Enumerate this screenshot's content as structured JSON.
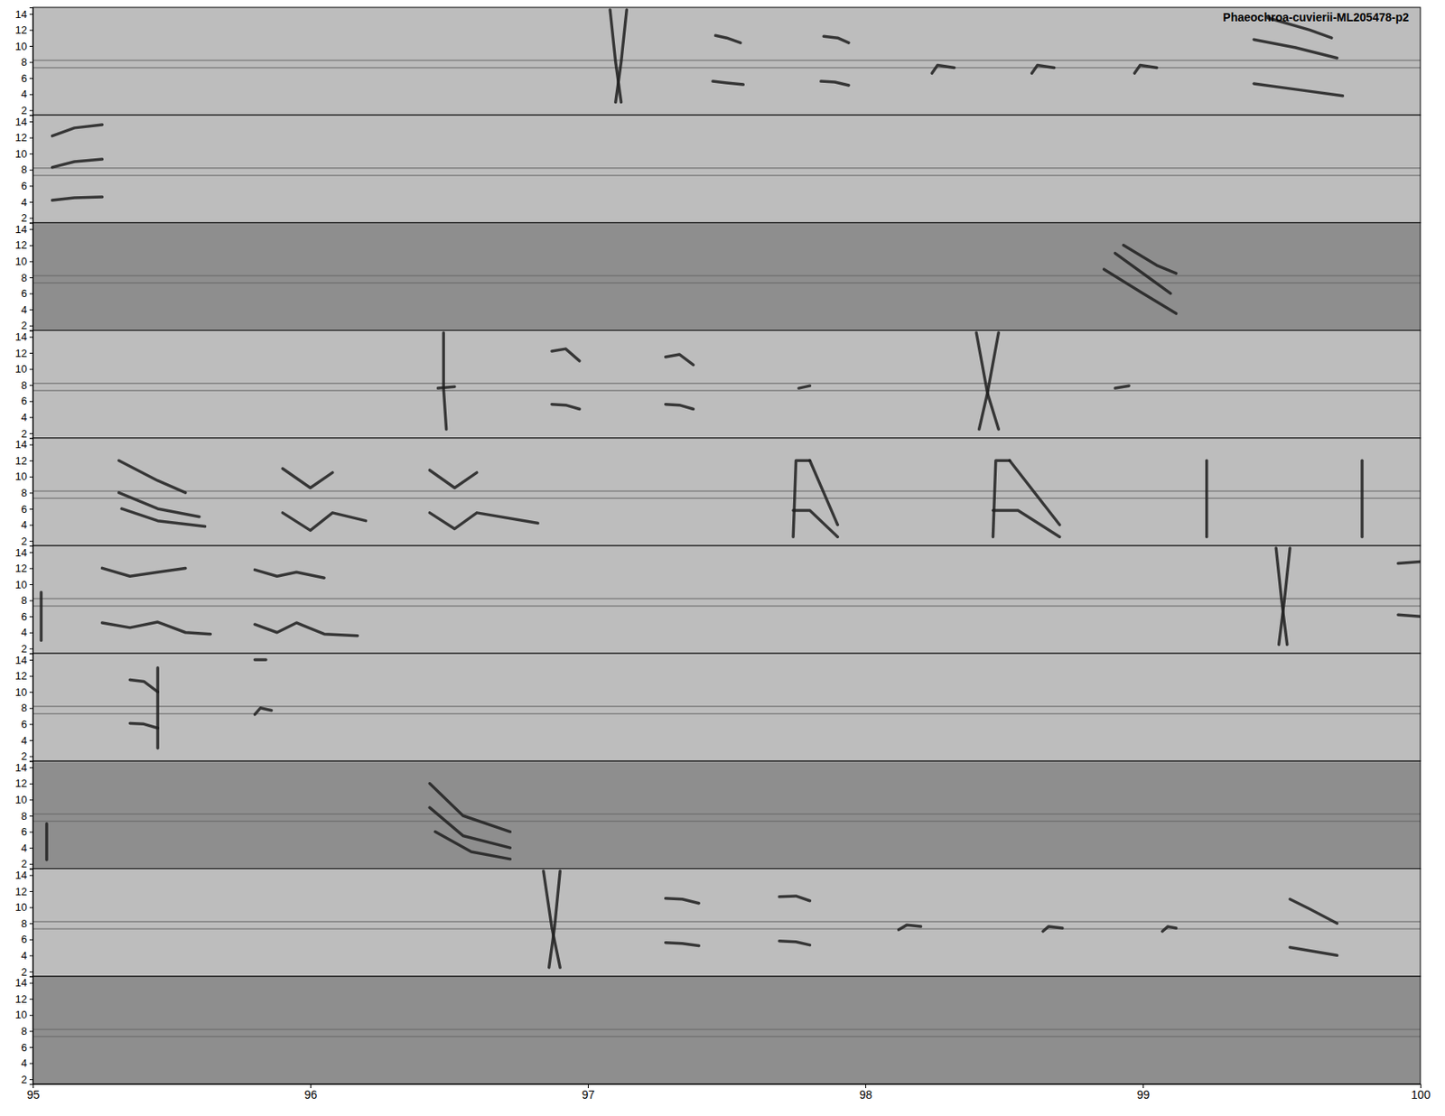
{
  "chart_data": {
    "type": "spectrogram",
    "title": "Phaeochroa-cuvierii-ML205478-p2",
    "xlim": [
      95,
      100
    ],
    "xticks": [
      95,
      96,
      97,
      98,
      99,
      100
    ],
    "ylim": [
      1.4,
      14.8
    ],
    "yticks": [
      2,
      4,
      6,
      8,
      10,
      12,
      14
    ],
    "hum_bands": [
      8.2,
      7.3
    ],
    "series": [
      {
        "color": "#bdbdbd",
        "strokes": [
          [
            [
              97.08,
              14.5
            ],
            [
              97.1,
              8
            ],
            [
              97.12,
              3
            ]
          ],
          [
            [
              97.14,
              14.5
            ],
            [
              97.12,
              8
            ],
            [
              97.1,
              3
            ]
          ],
          [
            [
              97.45,
              5.6
            ],
            [
              97.5,
              5.4
            ],
            [
              97.56,
              5.2
            ]
          ],
          [
            [
              97.46,
              11.3
            ],
            [
              97.5,
              11
            ],
            [
              97.55,
              10.4
            ]
          ],
          [
            [
              97.84,
              5.6
            ],
            [
              97.89,
              5.5
            ],
            [
              97.94,
              5.1
            ]
          ],
          [
            [
              97.85,
              11.2
            ],
            [
              97.9,
              11
            ],
            [
              97.94,
              10.4
            ]
          ],
          [
            [
              98.24,
              6.6
            ],
            [
              98.26,
              7.6
            ],
            [
              98.32,
              7.3
            ]
          ],
          [
            [
              98.6,
              6.6
            ],
            [
              98.62,
              7.6
            ],
            [
              98.68,
              7.3
            ]
          ],
          [
            [
              98.97,
              6.6
            ],
            [
              98.99,
              7.6
            ],
            [
              99.05,
              7.3
            ]
          ],
          [
            [
              99.4,
              5.3
            ],
            [
              99.55,
              4.6
            ],
            [
              99.72,
              3.8
            ]
          ],
          [
            [
              99.4,
              10.8
            ],
            [
              99.55,
              9.8
            ],
            [
              99.7,
              8.5
            ]
          ],
          [
            [
              99.45,
              13.5
            ],
            [
              99.6,
              12
            ],
            [
              99.68,
              11
            ]
          ]
        ]
      },
      {
        "color": "#bdbdbd",
        "strokes": [
          [
            [
              95.07,
              4.2
            ],
            [
              95.15,
              4.5
            ],
            [
              95.25,
              4.6
            ]
          ],
          [
            [
              95.07,
              8.3
            ],
            [
              95.15,
              9
            ],
            [
              95.25,
              9.3
            ]
          ],
          [
            [
              95.07,
              12.2
            ],
            [
              95.15,
              13.2
            ],
            [
              95.25,
              13.6
            ]
          ]
        ]
      },
      {
        "color": "#8e8e8e",
        "strokes": [
          [
            [
              98.86,
              9
            ],
            [
              99.0,
              6
            ],
            [
              99.12,
              3.5
            ]
          ],
          [
            [
              98.9,
              11
            ],
            [
              99.02,
              8
            ],
            [
              99.1,
              6
            ]
          ],
          [
            [
              98.93,
              12
            ],
            [
              99.05,
              9.5
            ],
            [
              99.12,
              8.5
            ]
          ]
        ]
      },
      {
        "color": "#bdbdbd",
        "strokes": [
          [
            [
              96.48,
              14.5
            ],
            [
              96.48,
              7.6
            ],
            [
              96.49,
              2.5
            ]
          ],
          [
            [
              96.46,
              7.6
            ],
            [
              96.52,
              7.8
            ]
          ],
          [
            [
              96.87,
              5.6
            ],
            [
              96.92,
              5.5
            ],
            [
              96.97,
              5.0
            ]
          ],
          [
            [
              96.87,
              12.2
            ],
            [
              96.92,
              12.5
            ],
            [
              96.97,
              11
            ]
          ],
          [
            [
              97.28,
              5.6
            ],
            [
              97.33,
              5.5
            ],
            [
              97.38,
              5.0
            ]
          ],
          [
            [
              97.28,
              11.5
            ],
            [
              97.33,
              11.8
            ],
            [
              97.38,
              10.5
            ]
          ],
          [
            [
              97.76,
              7.6
            ],
            [
              97.8,
              7.9
            ]
          ],
          [
            [
              98.4,
              14.5
            ],
            [
              98.44,
              7
            ],
            [
              98.48,
              2.5
            ]
          ],
          [
            [
              98.48,
              14.5
            ],
            [
              98.44,
              7
            ],
            [
              98.41,
              2.5
            ]
          ],
          [
            [
              98.9,
              7.6
            ],
            [
              98.95,
              7.9
            ]
          ]
        ]
      },
      {
        "color": "#bdbdbd",
        "strokes": [
          [
            [
              95.31,
              12
            ],
            [
              95.45,
              9.5
            ],
            [
              95.55,
              8
            ]
          ],
          [
            [
              95.31,
              8
            ],
            [
              95.45,
              6
            ],
            [
              95.6,
              5
            ]
          ],
          [
            [
              95.32,
              6
            ],
            [
              95.45,
              4.5
            ],
            [
              95.62,
              3.8
            ]
          ],
          [
            [
              95.9,
              5.5
            ],
            [
              96.0,
              3.3
            ],
            [
              96.08,
              5.5
            ],
            [
              96.2,
              4.5
            ]
          ],
          [
            [
              95.9,
              11
            ],
            [
              96.0,
              8.6
            ],
            [
              96.08,
              10.5
            ]
          ],
          [
            [
              96.43,
              5.5
            ],
            [
              96.52,
              3.5
            ],
            [
              96.6,
              5.5
            ],
            [
              96.82,
              4.2
            ]
          ],
          [
            [
              96.43,
              10.8
            ],
            [
              96.52,
              8.6
            ],
            [
              96.6,
              10.5
            ]
          ],
          [
            [
              97.74,
              2.5
            ],
            [
              97.75,
              12
            ],
            [
              97.8,
              12
            ]
          ],
          [
            [
              97.74,
              5.8
            ],
            [
              97.8,
              5.8
            ],
            [
              97.9,
              2.5
            ]
          ],
          [
            [
              97.8,
              12
            ],
            [
              97.9,
              4
            ]
          ],
          [
            [
              98.46,
              2.5
            ],
            [
              98.47,
              12
            ],
            [
              98.52,
              12
            ]
          ],
          [
            [
              98.46,
              5.8
            ],
            [
              98.55,
              5.8
            ],
            [
              98.7,
              2.5
            ]
          ],
          [
            [
              98.52,
              12
            ],
            [
              98.7,
              4
            ]
          ],
          [
            [
              99.23,
              2.5
            ],
            [
              99.23,
              12
            ]
          ],
          [
            [
              99.79,
              2.5
            ],
            [
              99.79,
              12
            ]
          ]
        ]
      },
      {
        "color": "#bdbdbd",
        "strokes": [
          [
            [
              95.03,
              3
            ],
            [
              95.03,
              9
            ]
          ],
          [
            [
              95.25,
              5.2
            ],
            [
              95.35,
              4.6
            ],
            [
              95.45,
              5.3
            ],
            [
              95.55,
              4
            ],
            [
              95.64,
              3.8
            ]
          ],
          [
            [
              95.25,
              12
            ],
            [
              95.35,
              11
            ],
            [
              95.45,
              11.5
            ],
            [
              95.55,
              12
            ]
          ],
          [
            [
              95.8,
              5
            ],
            [
              95.88,
              4
            ],
            [
              95.95,
              5.2
            ],
            [
              96.05,
              3.8
            ],
            [
              96.17,
              3.6
            ]
          ],
          [
            [
              95.8,
              11.8
            ],
            [
              95.88,
              11
            ],
            [
              95.95,
              11.5
            ],
            [
              96.05,
              10.8
            ]
          ],
          [
            [
              99.48,
              14.5
            ],
            [
              99.5,
              8
            ],
            [
              99.52,
              2.5
            ]
          ],
          [
            [
              99.53,
              14.5
            ],
            [
              99.51,
              8
            ],
            [
              99.49,
              2.5
            ]
          ],
          [
            [
              99.92,
              6.2
            ],
            [
              100,
              6
            ]
          ],
          [
            [
              99.92,
              12.6
            ],
            [
              100,
              12.8
            ]
          ]
        ]
      },
      {
        "color": "#bdbdbd",
        "strokes": [
          [
            [
              95.35,
              6.1
            ],
            [
              95.4,
              6
            ],
            [
              95.45,
              5.5
            ]
          ],
          [
            [
              95.35,
              11.5
            ],
            [
              95.4,
              11.3
            ],
            [
              95.45,
              10
            ]
          ],
          [
            [
              95.45,
              13
            ],
            [
              95.45,
              3
            ]
          ],
          [
            [
              95.8,
              7.2
            ],
            [
              95.82,
              8
            ],
            [
              95.86,
              7.7
            ]
          ],
          [
            [
              95.8,
              14
            ],
            [
              95.84,
              14
            ]
          ]
        ]
      },
      {
        "color": "#8e8e8e",
        "strokes": [
          [
            [
              96.43,
              12
            ],
            [
              96.55,
              8
            ],
            [
              96.72,
              6
            ]
          ],
          [
            [
              96.43,
              9
            ],
            [
              96.55,
              5.5
            ],
            [
              96.72,
              4
            ]
          ],
          [
            [
              96.45,
              6
            ],
            [
              96.58,
              3.5
            ],
            [
              96.72,
              2.6
            ]
          ],
          [
            [
              95.05,
              2.5
            ],
            [
              95.05,
              7
            ]
          ]
        ]
      },
      {
        "color": "#bdbdbd",
        "strokes": [
          [
            [
              96.84,
              14.5
            ],
            [
              96.87,
              7.5
            ],
            [
              96.9,
              2.5
            ]
          ],
          [
            [
              96.9,
              14.5
            ],
            [
              96.88,
              7.5
            ],
            [
              96.86,
              2.5
            ]
          ],
          [
            [
              97.28,
              5.6
            ],
            [
              97.34,
              5.5
            ],
            [
              97.4,
              5.2
            ]
          ],
          [
            [
              97.28,
              11.1
            ],
            [
              97.34,
              11
            ],
            [
              97.4,
              10.5
            ]
          ],
          [
            [
              97.69,
              5.8
            ],
            [
              97.75,
              5.7
            ],
            [
              97.8,
              5.3
            ]
          ],
          [
            [
              97.69,
              11.3
            ],
            [
              97.75,
              11.4
            ],
            [
              97.8,
              10.8
            ]
          ],
          [
            [
              98.12,
              7.2
            ],
            [
              98.15,
              7.8
            ],
            [
              98.2,
              7.6
            ]
          ],
          [
            [
              98.64,
              7.0
            ],
            [
              98.66,
              7.6
            ],
            [
              98.71,
              7.4
            ]
          ],
          [
            [
              99.07,
              7.0
            ],
            [
              99.09,
              7.6
            ],
            [
              99.12,
              7.4
            ]
          ],
          [
            [
              99.53,
              5.0
            ],
            [
              99.6,
              4.6
            ],
            [
              99.7,
              4.0
            ]
          ],
          [
            [
              99.53,
              11
            ],
            [
              99.6,
              9.8
            ],
            [
              99.7,
              8
            ]
          ]
        ]
      },
      {
        "color": "#8e8e8e",
        "strokes": []
      }
    ]
  }
}
